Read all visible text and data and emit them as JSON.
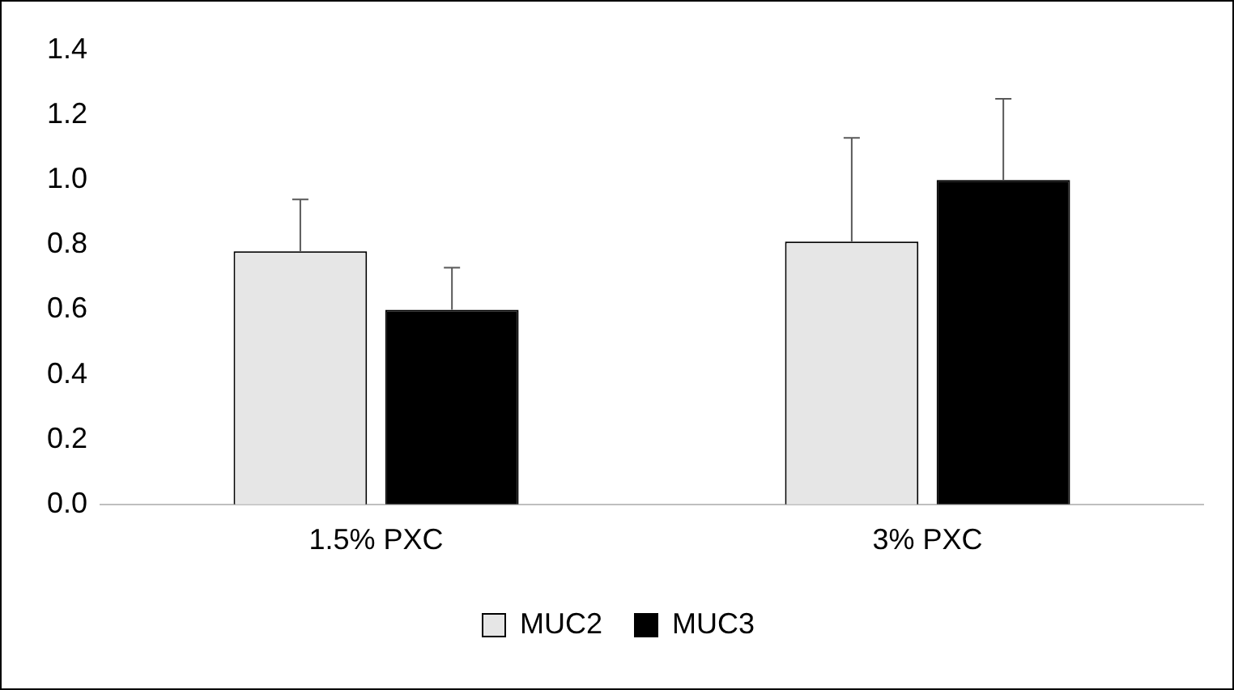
{
  "chart_data": {
    "type": "bar",
    "categories": [
      "1.5% PXC",
      "3% PXC"
    ],
    "series": [
      {
        "name": "MUC2",
        "color": "#e6e6e6",
        "values": [
          0.78,
          0.81
        ],
        "errors": [
          [
            0.78,
            0.94
          ],
          [
            0.81,
            1.13
          ]
        ]
      },
      {
        "name": "MUC3",
        "color": "#000000",
        "values": [
          0.6,
          1.0
        ],
        "errors": [
          [
            0.6,
            0.73
          ],
          [
            1.0,
            1.25
          ]
        ]
      }
    ],
    "ylim": [
      0,
      1.4
    ],
    "yticks": [
      {
        "value": 0,
        "label": "0.0"
      },
      {
        "value": 0.2,
        "label": "0.2"
      },
      {
        "value": 0.4,
        "label": "0.4"
      },
      {
        "value": 0.6,
        "label": "0.6"
      },
      {
        "value": 0.8,
        "label": "0.8"
      },
      {
        "value": 1,
        "label": "1.0"
      },
      {
        "value": 1.2,
        "label": "1.2"
      },
      {
        "value": 1.4,
        "label": "1.4"
      }
    ],
    "grid": false,
    "legend": "bottom"
  }
}
